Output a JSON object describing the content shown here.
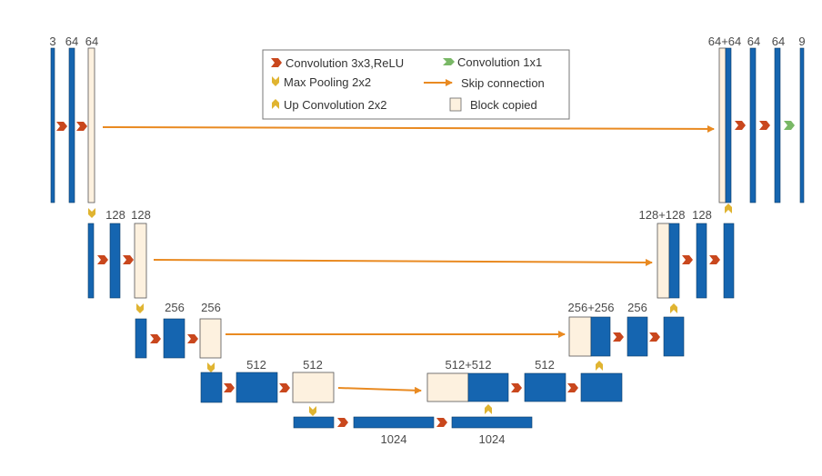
{
  "colors": {
    "conv_block": "#1565b0",
    "block_edge": "#0d3d66",
    "copied_block": "#fdf1df",
    "copied_edge": "#555555",
    "conv_arrow": "#c9471d",
    "pool_arrow": "#e0b431",
    "upconv_arrow": "#e0b431",
    "conv1x1_arrow": "#79b866",
    "skip_arrow": "#e98a21",
    "label_text": "#4a4a4a"
  },
  "labels": {
    "l1_in": "3",
    "l1_a": "64",
    "l1_b": "64",
    "l2_a": "128",
    "l2_b": "128",
    "l3_a": "256",
    "l3_b": "256",
    "l4_a": "512",
    "l4_b": "512",
    "bottom_a": "1024",
    "bottom_b": "1024",
    "d4_concat": "512+512",
    "d4_conv": "512",
    "d3_concat": "256+256",
    "d3_conv": "256",
    "d2_concat": "128+128",
    "d2_conv": "128",
    "d1_concat": "64+64",
    "d1_a": "64",
    "d1_b": "64",
    "out": "9"
  },
  "legend": {
    "conv3x3": "Convolution 3x3,ReLU",
    "maxpool": "Max Pooling 2x2",
    "upconv": "Up Convolution 2x2",
    "conv1x1": "Convolution 1x1",
    "skip": "Skip connection",
    "copied": "Block copied"
  },
  "icons": {
    "conv": "conv-arrow-icon",
    "pool": "pool-arrow-icon",
    "upconv": "upconv-arrow-icon",
    "conv1x1": "conv1x1-arrow-icon",
    "skip": "skip-arrow-icon"
  }
}
